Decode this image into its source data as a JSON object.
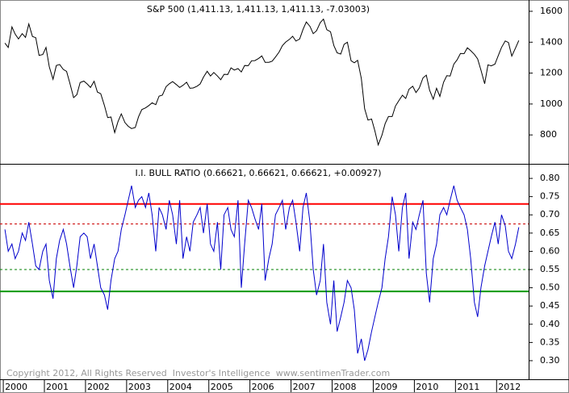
{
  "chart_data": [
    {
      "type": "line",
      "legend": "S&P 500 (1,411.13, 1,411.13, 1,411.13, -7.03003)",
      "color": "#000000",
      "xlim": [
        1999.92,
        2012.78
      ],
      "ylim": [
        613,
        1673
      ],
      "yticks": [
        800,
        1000,
        1200,
        1400,
        1600
      ],
      "x": [
        2000.04,
        2000.12,
        2000.21,
        2000.29,
        2000.37,
        2000.46,
        2000.54,
        2000.62,
        2000.71,
        2000.79,
        2000.87,
        2000.96,
        2001.04,
        2001.12,
        2001.21,
        2001.29,
        2001.37,
        2001.46,
        2001.54,
        2001.62,
        2001.71,
        2001.79,
        2001.87,
        2001.96,
        2002.04,
        2002.12,
        2002.21,
        2002.29,
        2002.37,
        2002.46,
        2002.54,
        2002.62,
        2002.71,
        2002.79,
        2002.87,
        2002.96,
        2003.04,
        2003.12,
        2003.21,
        2003.29,
        2003.37,
        2003.46,
        2003.54,
        2003.62,
        2003.71,
        2003.79,
        2003.87,
        2003.96,
        2004.04,
        2004.12,
        2004.21,
        2004.29,
        2004.37,
        2004.46,
        2004.54,
        2004.62,
        2004.71,
        2004.79,
        2004.87,
        2004.96,
        2005.04,
        2005.12,
        2005.21,
        2005.29,
        2005.37,
        2005.46,
        2005.54,
        2005.62,
        2005.71,
        2005.79,
        2005.87,
        2005.96,
        2006.04,
        2006.12,
        2006.21,
        2006.29,
        2006.37,
        2006.46,
        2006.54,
        2006.62,
        2006.71,
        2006.79,
        2006.87,
        2006.96,
        2007.04,
        2007.12,
        2007.21,
        2007.29,
        2007.37,
        2007.46,
        2007.54,
        2007.62,
        2007.71,
        2007.79,
        2007.87,
        2007.96,
        2008.04,
        2008.12,
        2008.21,
        2008.29,
        2008.37,
        2008.46,
        2008.54,
        2008.62,
        2008.71,
        2008.79,
        2008.87,
        2008.96,
        2009.04,
        2009.12,
        2009.21,
        2009.29,
        2009.37,
        2009.46,
        2009.54,
        2009.62,
        2009.71,
        2009.79,
        2009.87,
        2009.96,
        2010.04,
        2010.12,
        2010.21,
        2010.29,
        2010.37,
        2010.46,
        2010.54,
        2010.62,
        2010.71,
        2010.79,
        2010.87,
        2010.96,
        2011.04,
        2011.12,
        2011.21,
        2011.29,
        2011.37,
        2011.46,
        2011.54,
        2011.62,
        2011.71,
        2011.79,
        2011.87,
        2011.96,
        2012.04,
        2012.12,
        2012.21,
        2012.29,
        2012.37,
        2012.46,
        2012.54
      ],
      "values": [
        1394,
        1366,
        1499,
        1452,
        1421,
        1455,
        1431,
        1518,
        1437,
        1429,
        1315,
        1320,
        1366,
        1240,
        1160,
        1249,
        1256,
        1224,
        1211,
        1134,
        1041,
        1060,
        1139,
        1148,
        1130,
        1107,
        1147,
        1077,
        1067,
        990,
        912,
        916,
        815,
        886,
        936,
        880,
        856,
        841,
        848,
        917,
        964,
        975,
        990,
        1008,
        996,
        1051,
        1058,
        1112,
        1131,
        1145,
        1126,
        1107,
        1121,
        1141,
        1102,
        1104,
        1115,
        1130,
        1174,
        1212,
        1181,
        1204,
        1181,
        1157,
        1192,
        1191,
        1234,
        1220,
        1229,
        1207,
        1249,
        1248,
        1280,
        1281,
        1295,
        1311,
        1270,
        1270,
        1277,
        1304,
        1336,
        1378,
        1401,
        1418,
        1438,
        1407,
        1421,
        1482,
        1531,
        1503,
        1455,
        1474,
        1527,
        1549,
        1481,
        1468,
        1379,
        1331,
        1323,
        1386,
        1400,
        1280,
        1267,
        1283,
        1165,
        969,
        896,
        903,
        826,
        735,
        798,
        873,
        919,
        919,
        987,
        1021,
        1057,
        1036,
        1096,
        1115,
        1074,
        1104,
        1169,
        1187,
        1089,
        1031,
        1102,
        1049,
        1141,
        1183,
        1181,
        1258,
        1286,
        1327,
        1326,
        1364,
        1345,
        1321,
        1292,
        1219,
        1131,
        1253,
        1247,
        1258,
        1312,
        1366,
        1408,
        1398,
        1310,
        1362,
        1411
      ]
    },
    {
      "type": "line",
      "legend": "I.I. BULL RATIO (0.66621, 0.66621, 0.66621, +0.00927)",
      "color": "#0000cc",
      "annotation": "Copyright 2012, All Rights Reserved  Investor's Intelligence  www.sentimenTrader.com",
      "xlim": [
        1999.92,
        2012.78
      ],
      "xticks": [
        2000,
        2001,
        2002,
        2003,
        2004,
        2005,
        2006,
        2007,
        2008,
        2009,
        2010,
        2011,
        2012
      ],
      "ylim": [
        0.249,
        0.84
      ],
      "yticks": [
        {
          "value": 0.3,
          "label": "0.30"
        },
        0.35,
        {
          "value": 0.4,
          "label": "0.40"
        },
        0.45,
        {
          "value": 0.5,
          "label": "0.50"
        },
        0.55,
        {
          "value": 0.6,
          "label": "0.60"
        },
        0.65,
        {
          "value": 0.7,
          "label": "0.70"
        },
        0.75,
        {
          "value": 0.8,
          "label": "0.80"
        }
      ],
      "reference_lines": [
        {
          "value": 0.73,
          "color": "#ff0000",
          "dashed": false
        },
        {
          "value": 0.675,
          "color": "#cc0000",
          "dashed": true
        },
        {
          "value": 0.55,
          "color": "#008000",
          "dashed": true
        },
        {
          "value": 0.49,
          "color": "#009900",
          "dashed": false
        }
      ],
      "x": [
        2000.04,
        2000.12,
        2000.21,
        2000.29,
        2000.37,
        2000.46,
        2000.54,
        2000.62,
        2000.71,
        2000.79,
        2000.87,
        2000.96,
        2001.04,
        2001.12,
        2001.21,
        2001.29,
        2001.37,
        2001.46,
        2001.54,
        2001.62,
        2001.71,
        2001.79,
        2001.87,
        2001.96,
        2002.04,
        2002.12,
        2002.21,
        2002.29,
        2002.37,
        2002.46,
        2002.54,
        2002.62,
        2002.71,
        2002.79,
        2002.87,
        2002.96,
        2003.04,
        2003.12,
        2003.21,
        2003.29,
        2003.37,
        2003.46,
        2003.54,
        2003.62,
        2003.71,
        2003.79,
        2003.87,
        2003.96,
        2004.04,
        2004.12,
        2004.21,
        2004.29,
        2004.37,
        2004.46,
        2004.54,
        2004.62,
        2004.71,
        2004.79,
        2004.87,
        2004.96,
        2005.04,
        2005.12,
        2005.21,
        2005.29,
        2005.37,
        2005.46,
        2005.54,
        2005.62,
        2005.71,
        2005.79,
        2005.87,
        2005.96,
        2006.04,
        2006.12,
        2006.21,
        2006.29,
        2006.37,
        2006.46,
        2006.54,
        2006.62,
        2006.71,
        2006.79,
        2006.87,
        2006.96,
        2007.04,
        2007.12,
        2007.21,
        2007.29,
        2007.37,
        2007.46,
        2007.54,
        2007.62,
        2007.71,
        2007.79,
        2007.87,
        2007.96,
        2008.04,
        2008.12,
        2008.21,
        2008.29,
        2008.37,
        2008.46,
        2008.54,
        2008.62,
        2008.71,
        2008.79,
        2008.87,
        2008.96,
        2009.04,
        2009.12,
        2009.21,
        2009.29,
        2009.37,
        2009.46,
        2009.54,
        2009.62,
        2009.71,
        2009.79,
        2009.87,
        2009.96,
        2010.04,
        2010.12,
        2010.21,
        2010.29,
        2010.37,
        2010.46,
        2010.54,
        2010.62,
        2010.71,
        2010.79,
        2010.87,
        2010.96,
        2011.04,
        2011.12,
        2011.21,
        2011.29,
        2011.37,
        2011.46,
        2011.54,
        2011.62,
        2011.71,
        2011.79,
        2011.87,
        2011.96,
        2012.04,
        2012.12,
        2012.21,
        2012.29,
        2012.37,
        2012.46,
        2012.54
      ],
      "values": [
        0.66,
        0.6,
        0.62,
        0.58,
        0.6,
        0.65,
        0.63,
        0.68,
        0.62,
        0.56,
        0.55,
        0.6,
        0.62,
        0.52,
        0.47,
        0.58,
        0.63,
        0.66,
        0.62,
        0.56,
        0.5,
        0.56,
        0.64,
        0.65,
        0.64,
        0.58,
        0.62,
        0.56,
        0.5,
        0.48,
        0.44,
        0.52,
        0.58,
        0.6,
        0.66,
        0.7,
        0.74,
        0.78,
        0.72,
        0.74,
        0.75,
        0.72,
        0.76,
        0.7,
        0.6,
        0.72,
        0.7,
        0.66,
        0.74,
        0.7,
        0.62,
        0.74,
        0.58,
        0.64,
        0.6,
        0.68,
        0.7,
        0.72,
        0.65,
        0.73,
        0.62,
        0.6,
        0.68,
        0.55,
        0.7,
        0.72,
        0.66,
        0.64,
        0.74,
        0.5,
        0.62,
        0.74,
        0.72,
        0.69,
        0.66,
        0.73,
        0.52,
        0.58,
        0.62,
        0.7,
        0.72,
        0.74,
        0.66,
        0.72,
        0.74,
        0.68,
        0.6,
        0.72,
        0.76,
        0.68,
        0.55,
        0.48,
        0.52,
        0.62,
        0.46,
        0.4,
        0.52,
        0.38,
        0.42,
        0.46,
        0.52,
        0.5,
        0.44,
        0.32,
        0.36,
        0.3,
        0.33,
        0.38,
        0.42,
        0.46,
        0.5,
        0.58,
        0.64,
        0.75,
        0.7,
        0.6,
        0.72,
        0.76,
        0.58,
        0.68,
        0.66,
        0.7,
        0.74,
        0.54,
        0.46,
        0.58,
        0.62,
        0.7,
        0.72,
        0.7,
        0.74,
        0.78,
        0.74,
        0.72,
        0.7,
        0.66,
        0.58,
        0.46,
        0.42,
        0.5,
        0.56,
        0.6,
        0.64,
        0.68,
        0.62,
        0.7,
        0.67,
        0.6,
        0.58,
        0.62,
        0.666
      ]
    }
  ]
}
